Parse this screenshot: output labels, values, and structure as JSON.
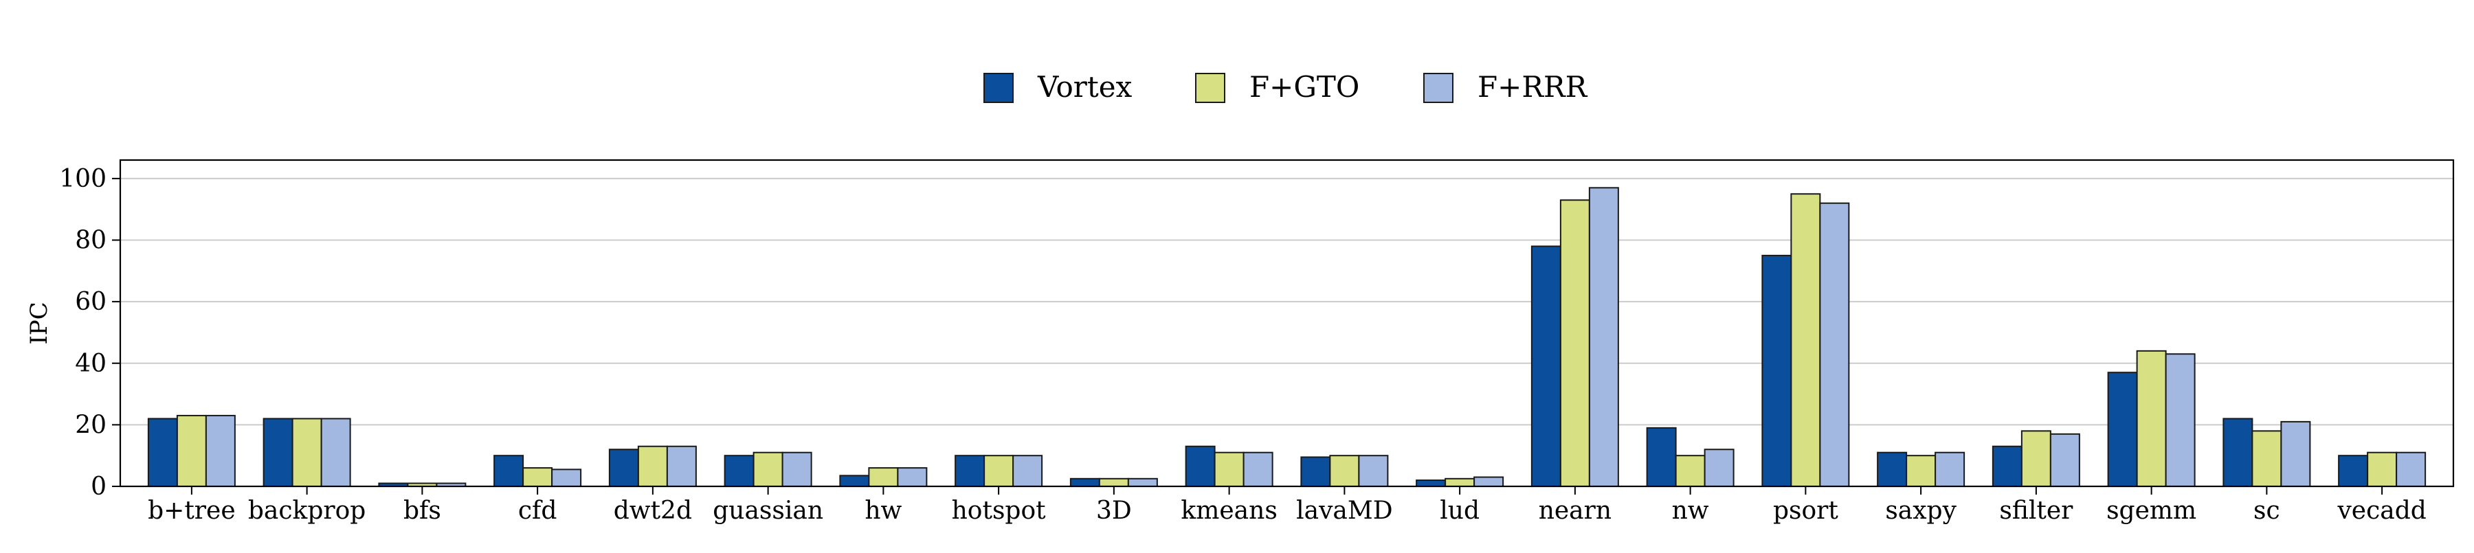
{
  "chart_data": {
    "type": "bar",
    "title": "",
    "xlabel": "",
    "ylabel": "IPC",
    "ylim": [
      0,
      106
    ],
    "yticks": [
      0,
      20,
      40,
      60,
      80,
      100
    ],
    "grid": "horizontal",
    "legend_position": "top-center",
    "categories": [
      "b+tree",
      "backprop",
      "bfs",
      "cfd",
      "dwt2d",
      "guassian",
      "hw",
      "hotspot",
      "3D",
      "kmeans",
      "lavaMD",
      "lud",
      "nearn",
      "nw",
      "psort",
      "saxpy",
      "sfilter",
      "sgemm",
      "sc",
      "vecadd"
    ],
    "series": [
      {
        "name": "Vortex",
        "color": "#0b4f9c",
        "values": [
          22,
          22,
          1,
          10,
          12,
          10,
          3.5,
          10,
          2.5,
          13,
          9.5,
          2,
          78,
          19,
          75,
          11,
          13,
          37,
          22,
          10
        ]
      },
      {
        "name": "F+GTO",
        "color": "#d7e184",
        "values": [
          23,
          22,
          1,
          6,
          13,
          11,
          6,
          10,
          2.5,
          11,
          10,
          2.5,
          93,
          10,
          95,
          10,
          18,
          44,
          18,
          11
        ]
      },
      {
        "name": "F+RRR",
        "color": "#a2b8e0",
        "values": [
          23,
          22,
          1,
          5.5,
          13,
          11,
          6,
          10,
          2.5,
          11,
          10,
          3,
          97,
          12,
          92,
          11,
          17,
          43,
          21,
          11
        ]
      }
    ]
  }
}
